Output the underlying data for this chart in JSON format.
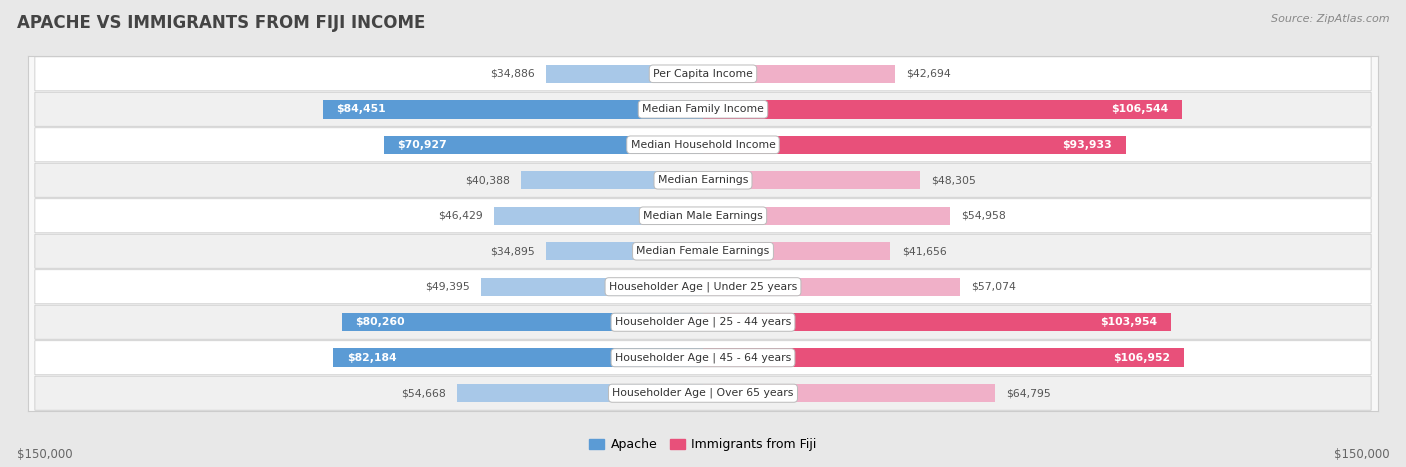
{
  "title": "APACHE VS IMMIGRANTS FROM FIJI INCOME",
  "source": "Source: ZipAtlas.com",
  "categories": [
    "Per Capita Income",
    "Median Family Income",
    "Median Household Income",
    "Median Earnings",
    "Median Male Earnings",
    "Median Female Earnings",
    "Householder Age | Under 25 years",
    "Householder Age | 25 - 44 years",
    "Householder Age | 45 - 64 years",
    "Householder Age | Over 65 years"
  ],
  "apache_values": [
    34886,
    84451,
    70927,
    40388,
    46429,
    34895,
    49395,
    80260,
    82184,
    54668
  ],
  "fiji_values": [
    42694,
    106544,
    93933,
    48305,
    54958,
    41656,
    57074,
    103954,
    106952,
    64795
  ],
  "apache_labels": [
    "$34,886",
    "$84,451",
    "$70,927",
    "$40,388",
    "$46,429",
    "$34,895",
    "$49,395",
    "$80,260",
    "$82,184",
    "$54,668"
  ],
  "fiji_labels": [
    "$42,694",
    "$106,544",
    "$93,933",
    "$48,305",
    "$54,958",
    "$41,656",
    "$57,074",
    "$103,954",
    "$106,952",
    "$64,795"
  ],
  "apache_color_light": "#A8C8E8",
  "apache_color_dark": "#5B9BD5",
  "fiji_color_light": "#F0B0C8",
  "fiji_color_dark": "#E8507A",
  "max_val": 150000,
  "legend_apache": "Apache",
  "legend_fiji": "Immigrants from Fiji",
  "fig_bg": "#e8e8e8",
  "chart_bg": "#f8f8f8",
  "row_colors": [
    "#ffffff",
    "#f0f0f0"
  ],
  "row_border": "#cccccc",
  "label_threshold_apache": 60000,
  "label_threshold_fiji": 75000
}
